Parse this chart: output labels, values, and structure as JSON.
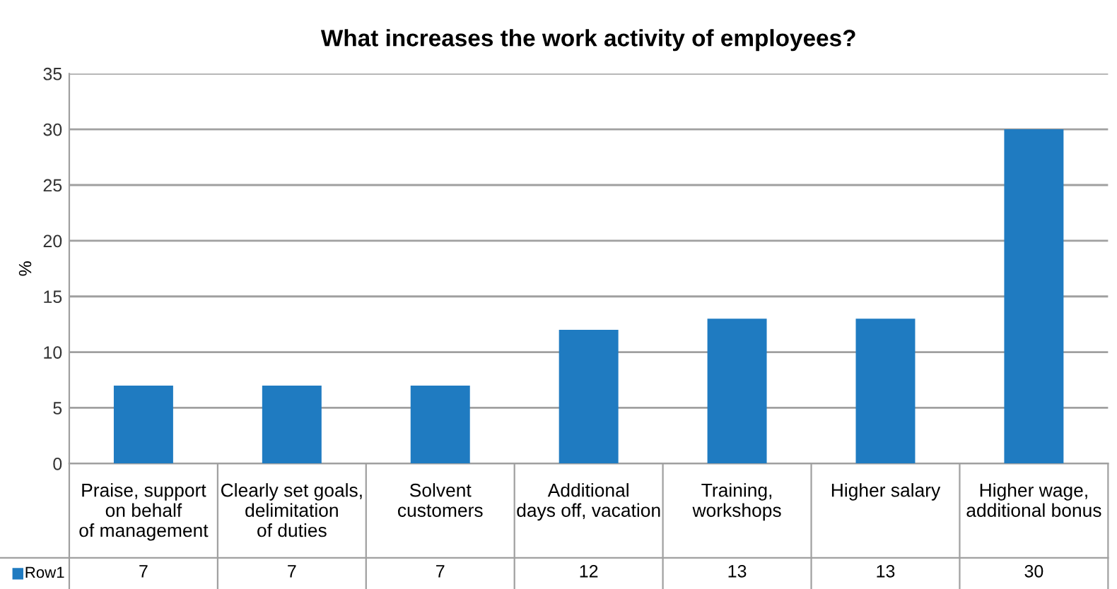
{
  "chart_data": {
    "type": "bar",
    "title": "What increases the work activity of employees?",
    "ylabel": "%",
    "categories": [
      "Praise, support\non behalf\nof management",
      "Clearly set goals,\ndelimitation\nof duties",
      "Solvent\ncustomers",
      "Additional\ndays off, vacation",
      "Training,\nworkshops",
      "Higher salary",
      "Higher wage,\nadditional bonus"
    ],
    "series": [
      {
        "name": "Row1",
        "color": "#1f7bc1",
        "values": [
          7,
          7,
          7,
          12,
          13,
          13,
          30
        ]
      }
    ],
    "ylim": [
      0,
      35
    ],
    "yticks": [
      0,
      5,
      10,
      15,
      20,
      25,
      30,
      35
    ],
    "grid": "y",
    "legend": "bottom",
    "data_labels": true
  }
}
